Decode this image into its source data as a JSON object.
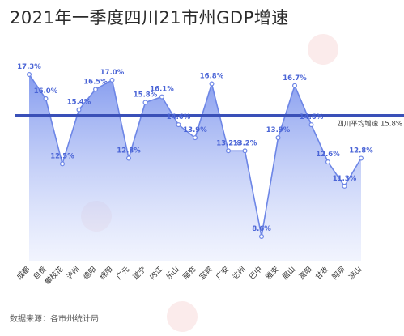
{
  "page": {
    "title": "2021年一季度四川21市州GDP增速",
    "source": "数据来源：各市州统计局"
  },
  "colors": {
    "line": "#6d86e6",
    "area_top": "#7f97ee",
    "area_bottom": "#e6ebfd",
    "reference": "#3a50b8",
    "label": "#4a64d6",
    "point": "#ffffff"
  },
  "chart_data": {
    "type": "area",
    "title": "2021年一季度四川21市州GDP增速",
    "categories": [
      "成都",
      "自贡",
      "攀枝花",
      "泸州",
      "德阳",
      "绵阳",
      "广元",
      "遂宁",
      "内江",
      "乐山",
      "南充",
      "宜宾",
      "广安",
      "达州",
      "巴中",
      "雅安",
      "眉山",
      "资阳",
      "甘孜",
      "阿坝",
      "凉山"
    ],
    "series": [
      {
        "values": [
          17.3,
          16.0,
          12.5,
          15.4,
          16.5,
          17.0,
          12.8,
          15.8,
          16.1,
          14.6,
          13.9,
          16.8,
          13.2,
          13.2,
          8.6,
          13.9,
          16.7,
          14.6,
          12.6,
          11.3,
          12.8
        ]
      }
    ],
    "value_labels": [
      "17.3%",
      "16.0%",
      "12.5%",
      "15.4%",
      "16.5%",
      "17.0%",
      "12.8%",
      "15.8%",
      "16.1%",
      "14.6%",
      "13.9%",
      "16.8%",
      "13.2%",
      "13.2%",
      "8.6%",
      "13.9%",
      "16.7%",
      "14.6%",
      "12.6%",
      "11.3%",
      "12.8%"
    ],
    "reference_line": {
      "value": 15.8,
      "label": "四川平均增速 15.8%"
    },
    "ylim": [
      7.0,
      18.0
    ],
    "grid": false,
    "legend": "none"
  }
}
